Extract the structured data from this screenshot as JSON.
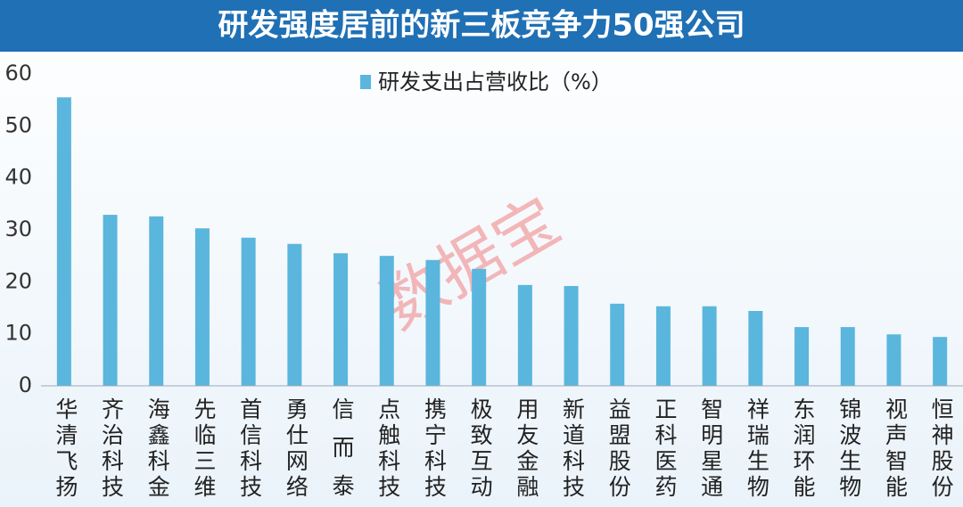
{
  "chart_data": {
    "type": "bar",
    "title": "研发强度居前的新三板竞争力50强公司",
    "watermark": "数据宝",
    "categories": [
      "华清飞扬",
      "齐治科技",
      "海鑫科金",
      "先临三维",
      "首信科技",
      "勇仕网络",
      "信而泰",
      "点触科技",
      "携宁科技",
      "极致互动",
      "用友金融",
      "新道科技",
      "益盟股份",
      "正科医药",
      "智明星通",
      "祥瑞生物",
      "东润环能",
      "锦波生物",
      "视声智能",
      "恒神股份"
    ],
    "series": [
      {
        "name": "研发支出占营收比（%）",
        "color": "#5ab6dc",
        "values": [
          55.5,
          32.9,
          32.6,
          30.3,
          28.5,
          27.3,
          25.5,
          25.0,
          24.2,
          22.5,
          19.4,
          19.2,
          15.8,
          15.3,
          15.3,
          14.4,
          11.3,
          11.3,
          9.9,
          9.4
        ]
      }
    ],
    "ylim": [
      0,
      60
    ],
    "yticks": [
      0,
      10,
      20,
      30,
      40,
      50,
      60
    ],
    "grid": false,
    "legend": "top"
  }
}
